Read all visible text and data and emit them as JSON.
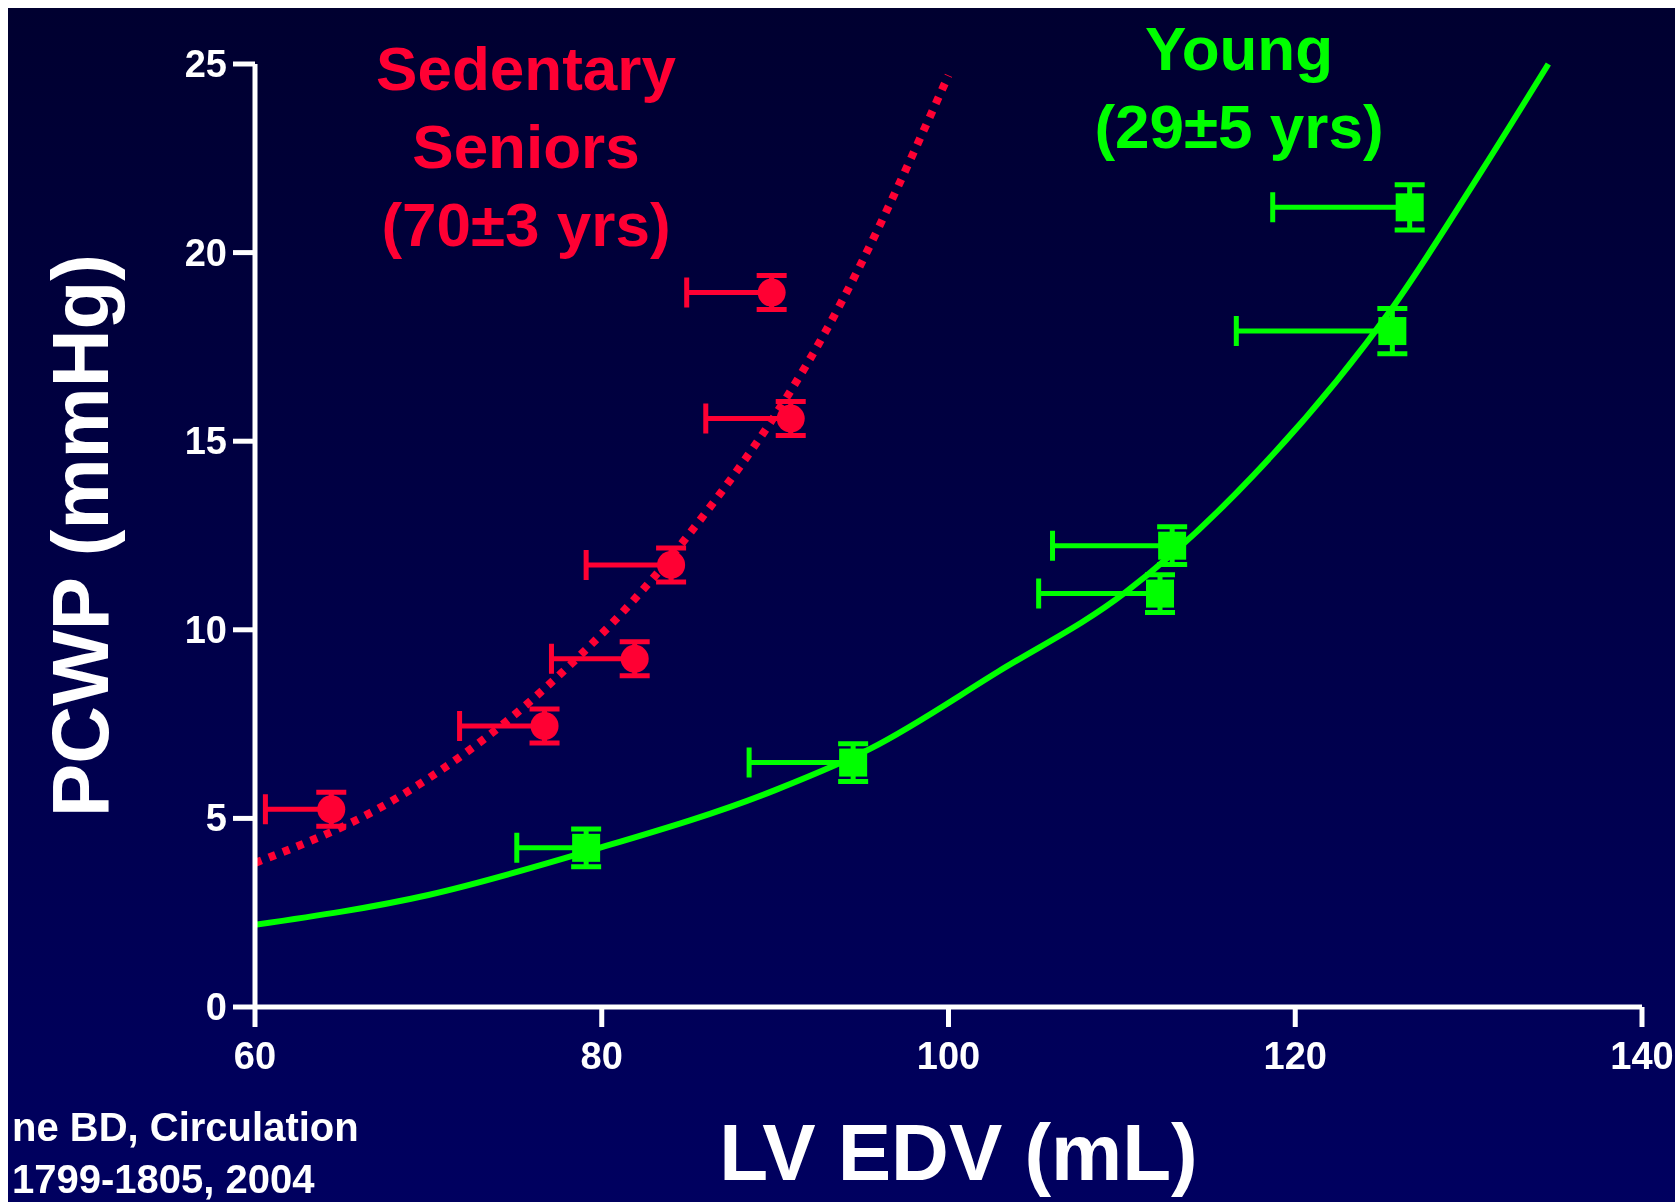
{
  "chart_data": {
    "type": "scatter",
    "xlabel": "LV EDV (mL)",
    "ylabel": "PCWP (mmHg)",
    "xlim": [
      60,
      140
    ],
    "xticks": [
      60,
      80,
      100,
      120,
      140
    ],
    "ylim": [
      0,
      25
    ],
    "yticks": [
      0,
      5,
      10,
      15,
      20,
      25
    ],
    "grid": false,
    "legend": false,
    "series": [
      {
        "name": "Sedentary Seniors (70±3 yrs)",
        "marker": "circle",
        "color": "#ff0033",
        "x": [
          64.4,
          76.7,
          81.9,
          84.0,
          90.9,
          89.8
        ],
        "values": [
          5.24,
          7.45,
          9.23,
          11.72,
          15.6,
          18.94
        ],
        "errors": [
          0.45,
          0.45,
          0.45,
          0.45,
          0.45,
          0.45
        ],
        "xerrors": [
          [
            60.6,
            64.4
          ],
          [
            71.8,
            76.7
          ],
          [
            77.1,
            81.9
          ],
          [
            79.1,
            84.0
          ],
          [
            86.0,
            90.9
          ],
          [
            84.9,
            89.8
          ]
        ]
      },
      {
        "type": "line",
        "marker": "none",
        "line_style": "dotted",
        "color": "#ff0033",
        "x": [
          60,
          68,
          76.7,
          84.7,
          92.9,
          100
        ],
        "values": [
          3.82,
          5.49,
          8.44,
          12.34,
          17.9,
          24.7
        ]
      },
      {
        "name": "Young (29±5 yrs)",
        "marker": "square",
        "color": "#00ff00",
        "x": [
          79.1,
          94.5,
          112.2,
          112.9,
          125.6,
          126.6
        ],
        "values": [
          4.22,
          6.48,
          10.96,
          12.23,
          17.92,
          21.2
        ],
        "errors": [
          0.5,
          0.5,
          0.5,
          0.5,
          0.6,
          0.6
        ],
        "xerrors": [
          [
            75.1,
            79.1
          ],
          [
            88.5,
            94.5
          ],
          [
            105.2,
            112.2
          ],
          [
            106.0,
            112.9
          ],
          [
            116.6,
            125.6
          ],
          [
            118.7,
            126.6
          ]
        ]
      },
      {
        "type": "line",
        "marker": "none",
        "line_style": "solid",
        "color": "#00ff00",
        "x": [
          60,
          70,
          79,
          90,
          95.5,
          102.9,
          110.2,
          117.6,
          125.7,
          130.8,
          134.6
        ],
        "values": [
          2.18,
          2.97,
          4.1,
          5.75,
          6.85,
          8.9,
          10.99,
          14.1,
          18.6,
          22.2,
          25
        ]
      }
    ],
    "annotations": [
      "ne BD, Circulation",
      "1799-1805, 2004"
    ]
  }
}
